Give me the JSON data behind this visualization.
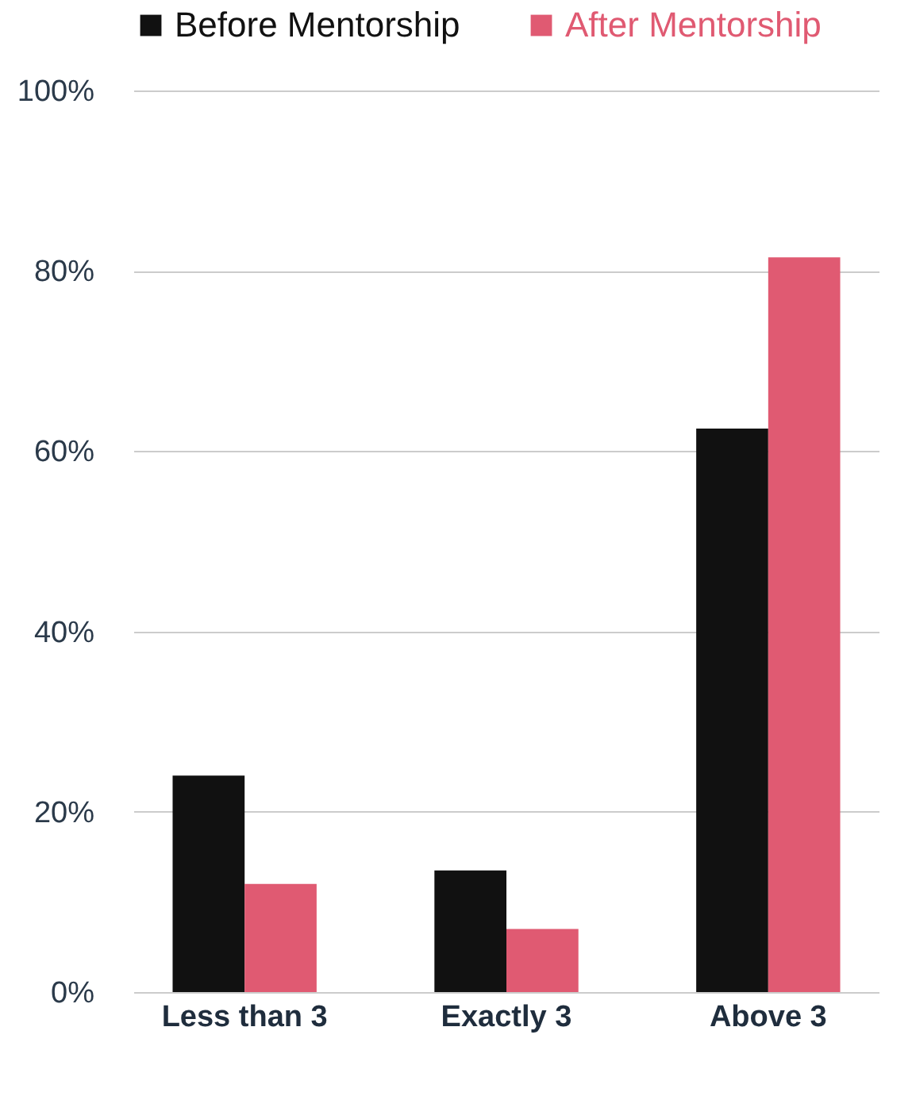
{
  "chart_data": {
    "type": "bar",
    "categories": [
      "Less than 3",
      "Exactly 3",
      "Above 3"
    ],
    "series": [
      {
        "name": "Before Mentorship",
        "color": "#111111",
        "values": [
          24,
          13.5,
          62.5
        ]
      },
      {
        "name": "After Mentorship",
        "color": "#e05a72",
        "values": [
          12,
          7,
          81.5
        ]
      }
    ],
    "ylim": [
      0,
      100
    ],
    "yticks": [
      {
        "value": 0,
        "label": "0%"
      },
      {
        "value": 20,
        "label": "20%"
      },
      {
        "value": 40,
        "label": "40%"
      },
      {
        "value": 60,
        "label": "60%"
      },
      {
        "value": 80,
        "label": "80%"
      },
      {
        "value": 100,
        "label": "100%"
      }
    ],
    "grid": "y",
    "legend": "top left"
  }
}
